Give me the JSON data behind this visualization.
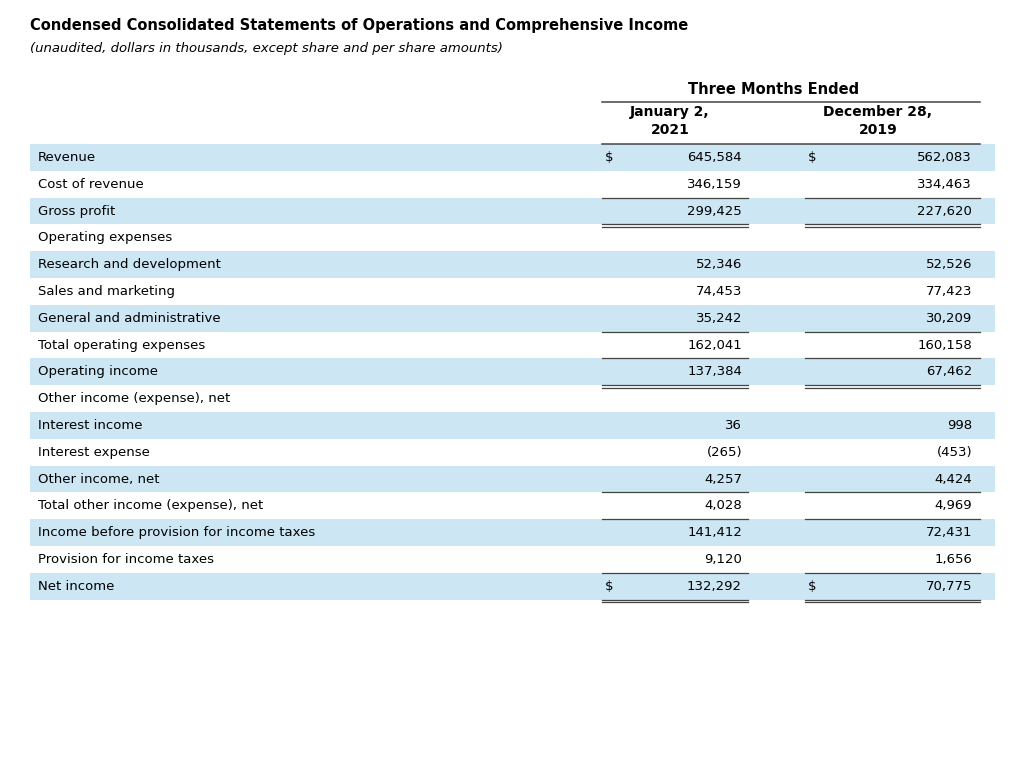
{
  "title": "Condensed Consolidated Statements of Operations and Comprehensive Income",
  "subtitle": "(unaudited, dollars in thousands, except share and per share amounts)",
  "header_group": "Three Months Ended",
  "col1_header_line1": "January 2,",
  "col1_header_line2": "2021",
  "col2_header_line1": "December 28,",
  "col2_header_line2": "2019",
  "rows": [
    {
      "label": "Revenue",
      "val1": "645,584",
      "val2": "562,083",
      "dollar1": "$",
      "dollar2": "$",
      "bg": "#cce6f4",
      "bottom_border": false,
      "double_bottom": false
    },
    {
      "label": "Cost of revenue",
      "val1": "346,159",
      "val2": "334,463",
      "dollar1": "",
      "dollar2": "",
      "bg": "#ffffff",
      "bottom_border": true,
      "double_bottom": false
    },
    {
      "label": "Gross profit",
      "val1": "299,425",
      "val2": "227,620",
      "dollar1": "",
      "dollar2": "",
      "bg": "#cce6f4",
      "bottom_border": false,
      "double_bottom": true
    },
    {
      "label": "Operating expenses",
      "val1": "",
      "val2": "",
      "dollar1": "",
      "dollar2": "",
      "bg": "#ffffff",
      "bottom_border": false,
      "double_bottom": false
    },
    {
      "label": "Research and development",
      "val1": "52,346",
      "val2": "52,526",
      "dollar1": "",
      "dollar2": "",
      "bg": "#cce6f4",
      "bottom_border": false,
      "double_bottom": false
    },
    {
      "label": "Sales and marketing",
      "val1": "74,453",
      "val2": "77,423",
      "dollar1": "",
      "dollar2": "",
      "bg": "#ffffff",
      "bottom_border": false,
      "double_bottom": false
    },
    {
      "label": "General and administrative",
      "val1": "35,242",
      "val2": "30,209",
      "dollar1": "",
      "dollar2": "",
      "bg": "#cce6f4",
      "bottom_border": true,
      "double_bottom": false
    },
    {
      "label": "Total operating expenses",
      "val1": "162,041",
      "val2": "160,158",
      "dollar1": "",
      "dollar2": "",
      "bg": "#ffffff",
      "bottom_border": true,
      "double_bottom": false
    },
    {
      "label": "Operating income",
      "val1": "137,384",
      "val2": "67,462",
      "dollar1": "",
      "dollar2": "",
      "bg": "#cce6f4",
      "bottom_border": false,
      "double_bottom": true
    },
    {
      "label": "Other income (expense), net",
      "val1": "",
      "val2": "",
      "dollar1": "",
      "dollar2": "",
      "bg": "#ffffff",
      "bottom_border": false,
      "double_bottom": false
    },
    {
      "label": "Interest income",
      "val1": "36",
      "val2": "998",
      "dollar1": "",
      "dollar2": "",
      "bg": "#cce6f4",
      "bottom_border": false,
      "double_bottom": false
    },
    {
      "label": "Interest expense",
      "val1": "(265)",
      "val2": "(453)",
      "dollar1": "",
      "dollar2": "",
      "bg": "#ffffff",
      "bottom_border": false,
      "double_bottom": false
    },
    {
      "label": "Other income, net",
      "val1": "4,257",
      "val2": "4,424",
      "dollar1": "",
      "dollar2": "",
      "bg": "#cce6f4",
      "bottom_border": true,
      "double_bottom": false
    },
    {
      "label": "Total other income (expense), net",
      "val1": "4,028",
      "val2": "4,969",
      "dollar1": "",
      "dollar2": "",
      "bg": "#ffffff",
      "bottom_border": true,
      "double_bottom": false
    },
    {
      "label": "Income before provision for income taxes",
      "val1": "141,412",
      "val2": "72,431",
      "dollar1": "",
      "dollar2": "",
      "bg": "#cce6f4",
      "bottom_border": false,
      "double_bottom": false
    },
    {
      "label": "Provision for income taxes",
      "val1": "9,120",
      "val2": "1,656",
      "dollar1": "",
      "dollar2": "",
      "bg": "#ffffff",
      "bottom_border": true,
      "double_bottom": false
    },
    {
      "label": "Net income",
      "val1": "132,292",
      "val2": "70,775",
      "dollar1": "$",
      "dollar2": "$",
      "bg": "#cce6f4",
      "bottom_border": false,
      "double_bottom": true
    }
  ],
  "bg_white": "#ffffff",
  "bg_blue": "#cce6f4",
  "border_color": "#444444",
  "text_color": "#000000",
  "title_fontsize": 10.5,
  "subtitle_fontsize": 9.5,
  "cell_fontsize": 9.5,
  "header_fontsize": 10.0,
  "fig_width": 10.24,
  "fig_height": 7.64,
  "dpi": 100
}
